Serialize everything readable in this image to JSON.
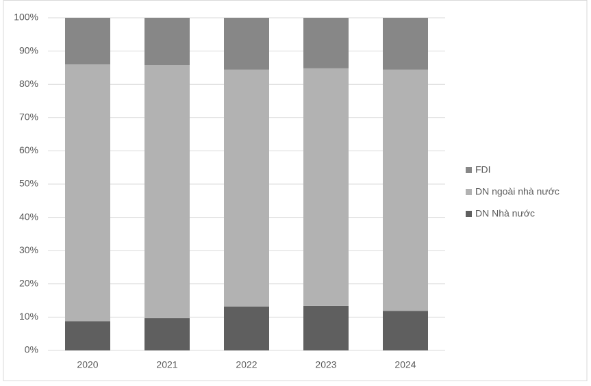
{
  "chart_data": {
    "type": "stacked_bar",
    "categories": [
      "2020",
      "2021",
      "2022",
      "2023",
      "2024"
    ],
    "series": [
      {
        "name": "DN Nhà nước",
        "color": "#5f5f5f",
        "values": [
          8.8,
          9.7,
          13.2,
          13.4,
          11.9
        ]
      },
      {
        "name": "DN ngoài nhà nước",
        "color": "#b2b2b2",
        "values": [
          77.2,
          76.1,
          71.2,
          71.4,
          72.5
        ]
      },
      {
        "name": "FDI",
        "color": "#878787",
        "values": [
          14.0,
          14.2,
          15.6,
          15.2,
          15.6
        ]
      }
    ],
    "ylim": [
      0,
      100
    ],
    "yticks": [
      {
        "value": 0,
        "label": "0%"
      },
      {
        "value": 10,
        "label": "10%"
      },
      {
        "value": 20,
        "label": "20%"
      },
      {
        "value": 30,
        "label": "30%"
      },
      {
        "value": 40,
        "label": "40%"
      },
      {
        "value": 50,
        "label": "50%"
      },
      {
        "value": 60,
        "label": "60%"
      },
      {
        "value": 70,
        "label": "70%"
      },
      {
        "value": 80,
        "label": "80%"
      },
      {
        "value": 90,
        "label": "90%"
      },
      {
        "value": 100,
        "label": "100%"
      }
    ],
    "grid": true,
    "legend": "right"
  }
}
